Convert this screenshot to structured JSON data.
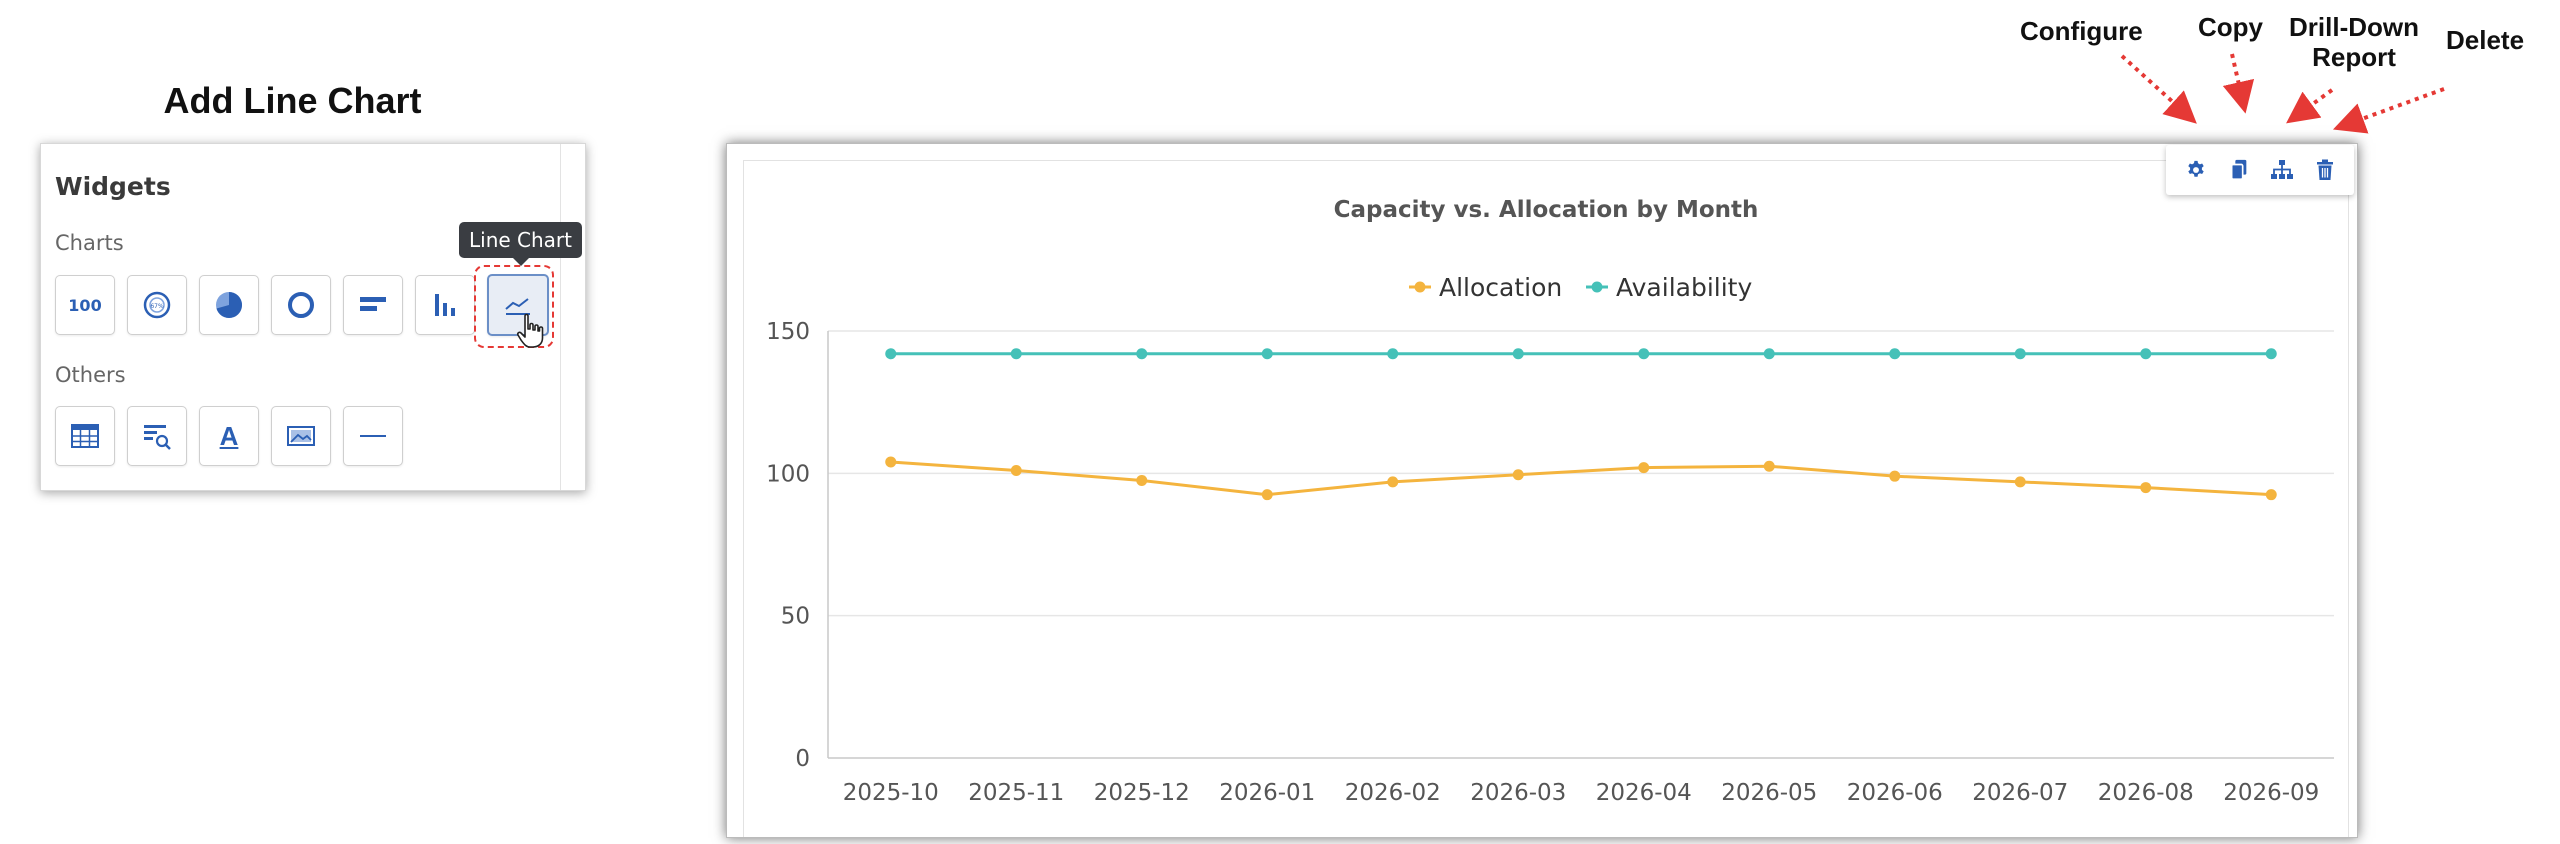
{
  "heading": "Add Line Chart",
  "widgets": {
    "title": "Widgets",
    "charts_label": "Charts",
    "others_label": "Others",
    "number_tile_text": "100",
    "gauge_tile_text": "67%",
    "text_tile_text": "A",
    "tooltip": "Line Chart",
    "chart_tiles": [
      "number-widget",
      "gauge-chart",
      "pie-chart",
      "donut-chart",
      "horizontal-bar-chart",
      "vertical-bar-chart",
      "line-chart"
    ],
    "other_tiles": [
      "table",
      "search-list",
      "text",
      "image",
      "divider"
    ],
    "selected": "line-chart"
  },
  "callouts": {
    "configure": "Configure",
    "copy": "Copy",
    "drill_down": "Drill-Down Report",
    "delete": "Delete"
  },
  "toolbar": {
    "icons": [
      "gear-icon",
      "copy-icon",
      "hierarchy-icon",
      "trash-icon"
    ],
    "icon_color": "#2b5fb4"
  },
  "colors": {
    "accent_red": "#e53935",
    "allocation": "#f4b43e",
    "availability": "#45c1b8"
  },
  "chart_data": {
    "type": "line",
    "title": "Capacity vs. Allocation by Month",
    "xlabel": "",
    "ylabel": "",
    "categories": [
      "2025-10",
      "2025-11",
      "2025-12",
      "2026-01",
      "2026-02",
      "2026-03",
      "2026-04",
      "2026-05",
      "2026-06",
      "2026-07",
      "2026-08",
      "2026-09"
    ],
    "series": [
      {
        "name": "Allocation",
        "color": "#f4b43e",
        "values": [
          104,
          101,
          97.5,
          92.5,
          97,
          99.5,
          102,
          102.5,
          99,
          97,
          95,
          92.5
        ]
      },
      {
        "name": "Availability",
        "color": "#45c1b8",
        "values": [
          142,
          142,
          142,
          142,
          142,
          142,
          142,
          142,
          142,
          142,
          142,
          142
        ]
      }
    ],
    "ylim": [
      0,
      150
    ],
    "yticks": [
      0,
      50,
      100,
      150
    ],
    "grid": true,
    "legend": "top-center"
  }
}
